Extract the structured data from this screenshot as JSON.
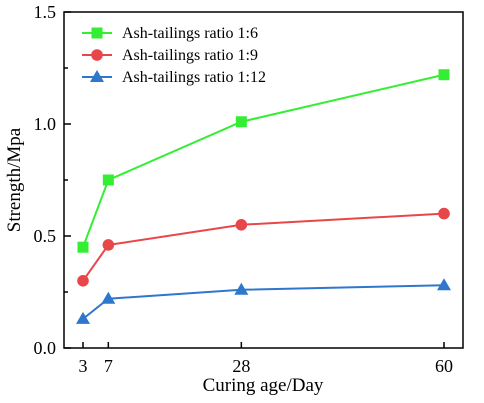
{
  "chart_data": {
    "type": "line",
    "title": "",
    "xlabel": "Curing age/Day",
    "ylabel": "Strength/Mpa",
    "x": [
      3,
      7,
      28,
      60
    ],
    "xlim": [
      0,
      63
    ],
    "ylim": [
      0,
      1.5
    ],
    "xticks": [
      "3",
      "7",
      "28",
      "60"
    ],
    "yticks": [
      "0.0",
      "0.5",
      "1.0",
      "1.5"
    ],
    "yminor_step": 0.25,
    "grid": false,
    "legend_position": "top-left",
    "series": [
      {
        "name": "Ash-tailings ratio 1:6",
        "values": [
          0.45,
          0.75,
          1.01,
          1.22
        ],
        "color": "#33ee33",
        "marker": "square"
      },
      {
        "name": "Ash-tailings ratio 1:9",
        "values": [
          0.3,
          0.46,
          0.55,
          0.6
        ],
        "color": "#e8474a",
        "marker": "circle"
      },
      {
        "name": "Ash-tailings ratio 1:12",
        "values": [
          0.13,
          0.22,
          0.26,
          0.28
        ],
        "color": "#2e77cc",
        "marker": "triangle"
      }
    ]
  }
}
